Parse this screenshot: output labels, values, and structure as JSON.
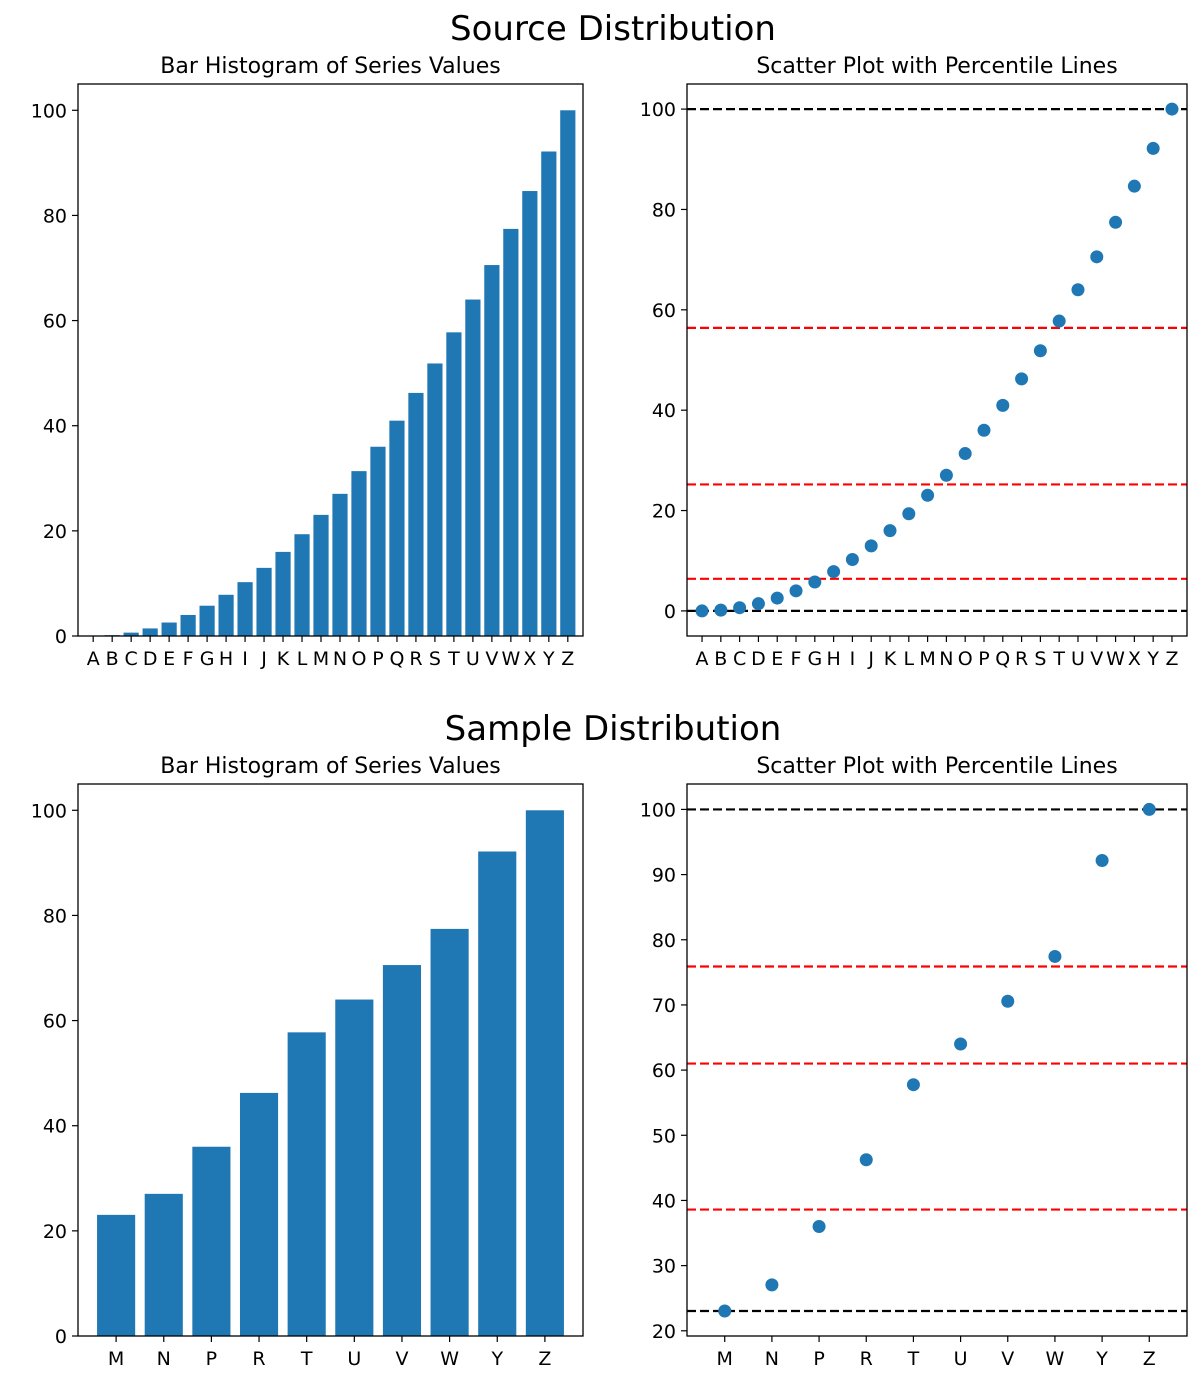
{
  "figure": {
    "rows": [
      {
        "title": "Source Distribution",
        "chart_data": [
          {
            "type": "bar",
            "title": "Bar Histogram of Series Values",
            "categories": [
              "A",
              "B",
              "C",
              "D",
              "E",
              "F",
              "G",
              "H",
              "I",
              "J",
              "K",
              "L",
              "M",
              "N",
              "O",
              "P",
              "Q",
              "R",
              "S",
              "T",
              "U",
              "V",
              "W",
              "X",
              "Y",
              "Z"
            ],
            "values": [
              0,
              0.16,
              0.64,
              1.44,
              2.56,
              4.0,
              5.76,
              7.84,
              10.24,
              12.96,
              16.0,
              19.36,
              23.04,
              27.04,
              31.36,
              36.0,
              40.96,
              46.24,
              51.84,
              57.76,
              64.0,
              70.56,
              77.44,
              84.64,
              92.16,
              100
            ],
            "ylim": [
              0,
              105
            ],
            "yticks": [
              0,
              20,
              40,
              60,
              80,
              100
            ],
            "color": "#1f77b4"
          },
          {
            "type": "scatter",
            "title": "Scatter Plot with Percentile Lines",
            "categories": [
              "A",
              "B",
              "C",
              "D",
              "E",
              "F",
              "G",
              "H",
              "I",
              "J",
              "K",
              "L",
              "M",
              "N",
              "O",
              "P",
              "Q",
              "R",
              "S",
              "T",
              "U",
              "V",
              "W",
              "X",
              "Y",
              "Z"
            ],
            "values": [
              0,
              0.16,
              0.64,
              1.44,
              2.56,
              4.0,
              5.76,
              7.84,
              10.24,
              12.96,
              16.0,
              19.36,
              23.04,
              27.04,
              31.36,
              36.0,
              40.96,
              46.24,
              51.84,
              57.76,
              64.0,
              70.56,
              77.44,
              84.64,
              92.16,
              100
            ],
            "ylim": [
              -5,
              105
            ],
            "yticks": [
              0,
              20,
              40,
              60,
              80,
              100
            ],
            "color": "#1f77b4",
            "reference_lines": [
              {
                "y": 0,
                "color": "#000000"
              },
              {
                "y": 6.4,
                "color": "#ff0000"
              },
              {
                "y": 25.2,
                "color": "#ff0000"
              },
              {
                "y": 56.4,
                "color": "#ff0000"
              },
              {
                "y": 100,
                "color": "#000000"
              }
            ]
          }
        ]
      },
      {
        "title": "Sample Distribution",
        "chart_data": [
          {
            "type": "bar",
            "title": "Bar Histogram of Series Values",
            "categories": [
              "M",
              "N",
              "P",
              "R",
              "T",
              "U",
              "V",
              "W",
              "Y",
              "Z"
            ],
            "values": [
              23.04,
              27.04,
              36.0,
              46.24,
              57.76,
              64.0,
              70.56,
              77.44,
              92.16,
              100
            ],
            "ylim": [
              0,
              105
            ],
            "yticks": [
              0,
              20,
              40,
              60,
              80,
              100
            ],
            "color": "#1f77b4"
          },
          {
            "type": "scatter",
            "title": "Scatter Plot with Percentile Lines",
            "categories": [
              "M",
              "N",
              "P",
              "R",
              "T",
              "U",
              "V",
              "W",
              "Y",
              "Z"
            ],
            "values": [
              23.04,
              27.04,
              36.0,
              46.24,
              57.76,
              64.0,
              70.56,
              77.44,
              92.16,
              100
            ],
            "ylim": [
              19.2,
              103.9
            ],
            "yticks": [
              20,
              30,
              40,
              50,
              60,
              70,
              80,
              90,
              100
            ],
            "color": "#1f77b4",
            "reference_lines": [
              {
                "y": 23.04,
                "color": "#000000"
              },
              {
                "y": 38.6,
                "color": "#ff0000"
              },
              {
                "y": 61.0,
                "color": "#ff0000"
              },
              {
                "y": 75.9,
                "color": "#ff0000"
              },
              {
                "y": 100,
                "color": "#000000"
              }
            ]
          }
        ]
      }
    ]
  }
}
